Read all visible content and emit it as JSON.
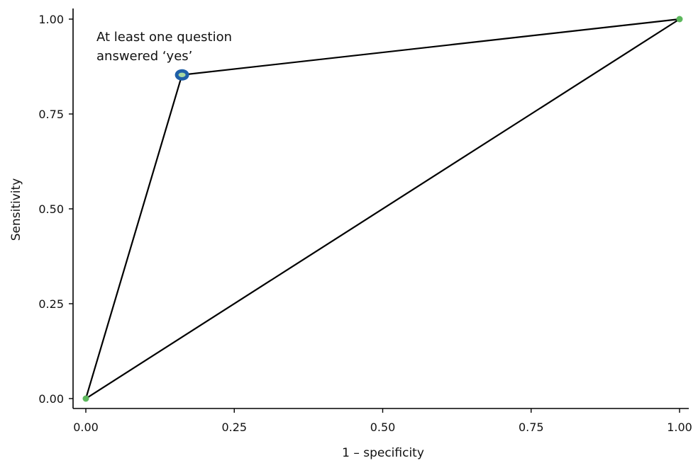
{
  "chart_data": {
    "type": "line",
    "title": "",
    "xlabel": "1 – specificity",
    "ylabel": "Sensitivity",
    "xlim": [
      0,
      1
    ],
    "ylim": [
      0,
      1
    ],
    "grid": false,
    "x_ticks": [
      "0.00",
      "0.25",
      "0.50",
      "0.75",
      "1.00"
    ],
    "y_ticks": [
      "0.00",
      "0.25",
      "0.50",
      "0.75",
      "1.00"
    ],
    "roc_curve": {
      "x": [
        0.0,
        0.162,
        1.0
      ],
      "y": [
        0.0,
        0.853,
        1.0
      ]
    },
    "reference_line": {
      "x": [
        0.0,
        1.0
      ],
      "y": [
        0.0,
        1.0
      ]
    },
    "points": [
      {
        "x": 0.0,
        "y": 0.0,
        "style": "endpoint"
      },
      {
        "x": 0.162,
        "y": 0.853,
        "style": "highlight"
      },
      {
        "x": 1.0,
        "y": 1.0,
        "style": "endpoint"
      }
    ],
    "annotation": {
      "lines": [
        "At least one question",
        "answered ‘yes’"
      ]
    },
    "colors": {
      "line": "#000000",
      "endpoint": "#5cb85c",
      "highlight_ring": "#1f5fa8",
      "highlight_fill": "#a8d8a0"
    }
  }
}
